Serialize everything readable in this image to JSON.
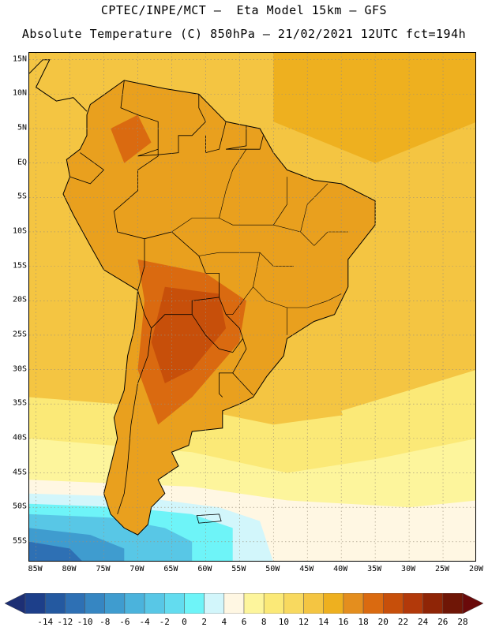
{
  "header": {
    "line1": "CPTEC/INPE/MCT –  Eta Model 15km – GFS",
    "line2": "Absolute Temperature (C) 850hPa – 21/02/2021 12UTC fct=194h"
  },
  "map": {
    "lon_range": [
      -86,
      -20
    ],
    "lat_range": [
      -58,
      16
    ],
    "lat_ticks": [
      "15N",
      "10N",
      "5N",
      "EQ",
      "5S",
      "10S",
      "15S",
      "20S",
      "25S",
      "30S",
      "35S",
      "40S",
      "45S",
      "50S",
      "55S"
    ],
    "lat_values": [
      15,
      10,
      5,
      0,
      -5,
      -10,
      -15,
      -20,
      -25,
      -30,
      -35,
      -40,
      -45,
      -50,
      -55
    ],
    "lon_ticks": [
      "85W",
      "80W",
      "75W",
      "70W",
      "65W",
      "60W",
      "55W",
      "50W",
      "45W",
      "40W",
      "35W",
      "30W",
      "25W",
      "20W"
    ],
    "lon_values": [
      -85,
      -80,
      -75,
      -70,
      -65,
      -60,
      -55,
      -50,
      -45,
      -40,
      -35,
      -30,
      -25,
      -20
    ],
    "grid": true,
    "grid_style": "dotted"
  },
  "colorbar": {
    "labels": [
      "-14",
      "-12",
      "-10",
      "-8",
      "-6",
      "-4",
      "-2",
      "0",
      "2",
      "4",
      "6",
      "8",
      "10",
      "12",
      "14",
      "16",
      "18",
      "20",
      "22",
      "24",
      "26",
      "28"
    ],
    "colors": [
      "#1d3f8a",
      "#2459a0",
      "#2e70b4",
      "#3686c2",
      "#3f9ccf",
      "#4bb3dc",
      "#58c7e6",
      "#63dcef",
      "#6ef4f8",
      "#d2f6fb",
      "#fff7e3",
      "#fdf59c",
      "#fbe977",
      "#f8d95f",
      "#f4c542",
      "#eeb01f",
      "#e48e1e",
      "#da6a10",
      "#c74f0a",
      "#b2390a",
      "#8f2506",
      "#6f1606"
    ],
    "under_color": "#1d2f74",
    "over_color": "#6a0a0a"
  },
  "fill_colors": {
    "ocean_warm": "#f4c542",
    "ocean_mid": "#eeb01f",
    "ocean_cool": "#fbe977",
    "pale": "#fdf59c",
    "cream": "#fff7e3",
    "land": "#e9a01e",
    "land_hot": "#da6a10",
    "land_hotter": "#c74f0a",
    "cold_1": "#d2f6fb",
    "cold_2": "#6ef4f8",
    "cold_3": "#58c7e6",
    "cold_4": "#3f9ccf",
    "cold_5": "#2e70b4"
  }
}
